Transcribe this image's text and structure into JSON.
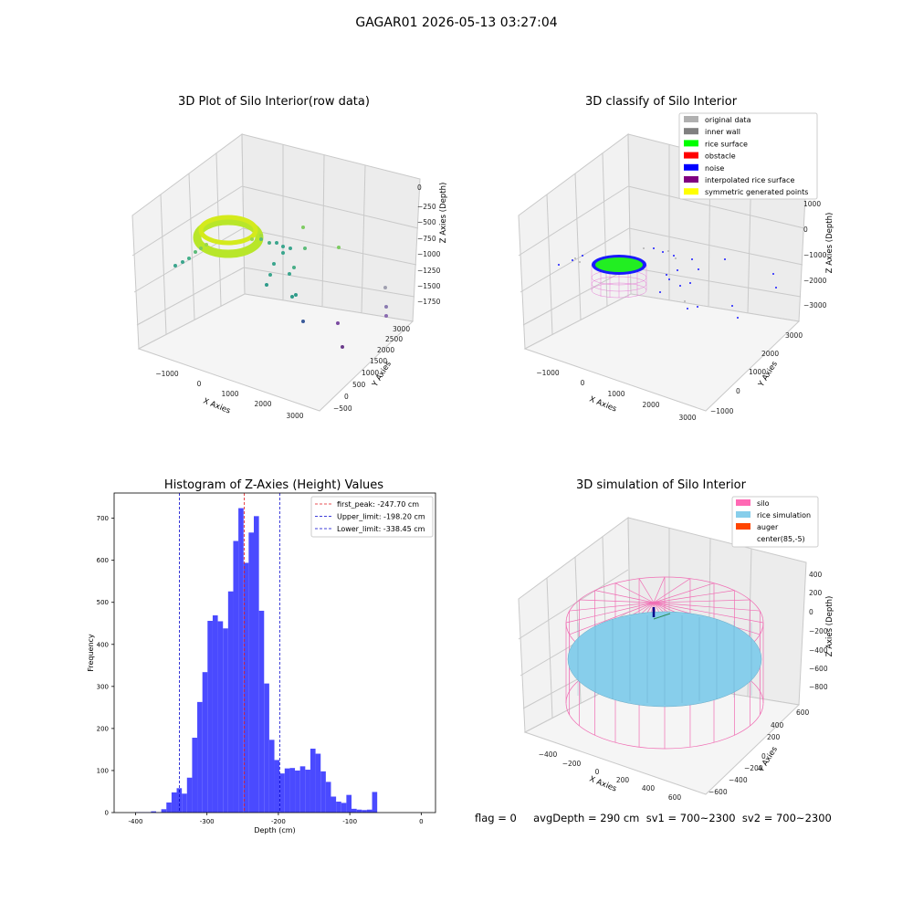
{
  "figure_title": "GAGAR01 2026-05-13 03:27:04",
  "footer_text": "flag = 0     avgDepth = 290 cm  sv1 = 700~2300  sv2 = 700~2300",
  "colors": {
    "histogram_bar": "#4a4aff",
    "first_peak_line": "#e41a1c",
    "limit_line": "#0000cc",
    "silo_wire": "#f06eb4",
    "rice_sim": "#87ceeb"
  },
  "chart_data": [
    {
      "type": "scatter",
      "subtype": "3d",
      "title": "3D Plot of Silo Interior(row data)",
      "xlabel": "X Axies",
      "ylabel": "Y Axies",
      "zlabel": "Z Axies (Depth)",
      "x_ticks": [
        "−1000",
        "0",
        "1000",
        "2000",
        "3000"
      ],
      "y_ticks": [
        "−500",
        "0",
        "500",
        "1000",
        "1500",
        "2000",
        "2500",
        "3000"
      ],
      "z_ticks": [
        "0",
        "−250",
        "−500",
        "−750",
        "−1000",
        "−1250",
        "−1500",
        "−1750"
      ],
      "xlim": [
        -1500,
        3300
      ],
      "ylim": [
        -600,
        3200
      ],
      "zlim": [
        -1900,
        50
      ]
    },
    {
      "type": "scatter",
      "subtype": "3d",
      "title": "3D classify of Silo Interior",
      "xlabel": "X Axies",
      "ylabel": "Y Axies",
      "zlabel": "Z Axies (Depth)",
      "x_ticks": [
        "−1000",
        "0",
        "1000",
        "2000",
        "3000"
      ],
      "y_ticks": [
        "−1000",
        "0",
        "1000",
        "2000",
        "3000"
      ],
      "z_ticks": [
        "1000",
        "0",
        "−1000",
        "−2000",
        "−3000"
      ],
      "xlim": [
        -1500,
        3300
      ],
      "ylim": [
        -1200,
        3500
      ],
      "zlim": [
        -3300,
        1200
      ],
      "legend": [
        {
          "label": "original data",
          "color": "#b0b0b0"
        },
        {
          "label": "inner wall",
          "color": "#808080"
        },
        {
          "label": "rice surface",
          "color": "#00ff00"
        },
        {
          "label": "obstacle",
          "color": "#ff0000"
        },
        {
          "label": "noise",
          "color": "#0000ff"
        },
        {
          "label": "interpolated rice surface",
          "color": "#800080"
        },
        {
          "label": "symmetric generated points",
          "color": "#ffff00"
        }
      ],
      "legend_position": "top-right"
    },
    {
      "type": "bar",
      "subtype": "histogram",
      "title": "Histogram of Z-Axies (Height) Values",
      "xlabel": "Depth (cm)",
      "ylabel": "Frequency",
      "x_ticks": [
        -400,
        -300,
        -200,
        -100,
        0
      ],
      "y_ticks": [
        0,
        100,
        200,
        300,
        400,
        500,
        600,
        700
      ],
      "xlim": [
        -430,
        20
      ],
      "ylim": [
        0,
        760
      ],
      "bin_width": 7.2,
      "bin_start": -400,
      "values": [
        1,
        1,
        1,
        3,
        1,
        8,
        24,
        48,
        58,
        45,
        83,
        178,
        263,
        334,
        456,
        469,
        455,
        438,
        526,
        646,
        724,
        594,
        666,
        705,
        480,
        307,
        173,
        125,
        93,
        105,
        106,
        100,
        110,
        102,
        152,
        140,
        98,
        73,
        38,
        26,
        23,
        42,
        9,
        7,
        6,
        7,
        49
      ],
      "vlines": [
        {
          "label": "first_peak: -247.70 cm",
          "x": -247.7,
          "color": "#e41a1c"
        },
        {
          "label": "Upper_limit: -198.20 cm",
          "x": -198.2,
          "color": "#0000cc"
        },
        {
          "label": "Lower_limit: -338.45 cm",
          "x": -338.45,
          "color": "#0000cc"
        }
      ],
      "legend_position": "top-right"
    },
    {
      "type": "scatter",
      "subtype": "3d-surface",
      "title": "3D simulation of Silo Interior",
      "xlabel": "X Axies",
      "ylabel": "Y Axies",
      "zlabel": "Z Axies (Depth)",
      "x_ticks": [
        "−400",
        "−200",
        "0",
        "200",
        "400",
        "600"
      ],
      "y_ticks": [
        "−600",
        "−400",
        "−200",
        "0",
        "200",
        "400",
        "600"
      ],
      "z_ticks": [
        "400",
        "200",
        "0",
        "−200",
        "−400",
        "−600",
        "−800"
      ],
      "xlim": [
        -500,
        700
      ],
      "ylim": [
        -700,
        700
      ],
      "zlim": [
        -900,
        500
      ],
      "legend": [
        {
          "label": "silo",
          "color": "#ff69b4"
        },
        {
          "label": "rice simulation",
          "color": "#87ceeb"
        },
        {
          "label": "auger",
          "color": "#ff4500"
        },
        {
          "label": "center(85,-5)",
          "color": ""
        }
      ],
      "legend_position": "top-right"
    }
  ]
}
